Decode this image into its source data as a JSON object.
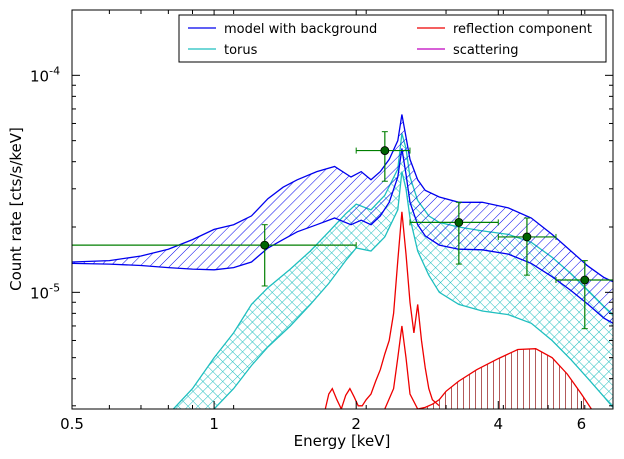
{
  "chart_data": {
    "type": "line",
    "xlabel": "Energy [keV]",
    "ylabel": "Count rate [cts/s/keV]",
    "xscale": "log",
    "yscale": "log",
    "xlim": [
      0.5,
      7.0
    ],
    "ylim": [
      2.9e-06,
      0.0002
    ],
    "x_ticks": [
      {
        "value": 0.5,
        "label": "0.5"
      },
      {
        "value": 1,
        "label": "1"
      },
      {
        "value": 2,
        "label": "2"
      },
      {
        "value": 4,
        "label": "4"
      },
      {
        "value": 6,
        "label": "6"
      }
    ],
    "y_ticks": [
      {
        "value": 1e-05,
        "base": "10",
        "exp": "-5"
      },
      {
        "value": 0.0001,
        "base": "10",
        "exp": "-4"
      }
    ],
    "legend": {
      "placement": "top-right",
      "entries": [
        {
          "label": "model with background",
          "color": "#0000ee"
        },
        {
          "label": "reflection component",
          "color": "#ee0000"
        },
        {
          "label": "torus",
          "color": "#1fbfbf"
        },
        {
          "label": "scattering",
          "color": "#bf00bf"
        }
      ]
    },
    "bands": [
      {
        "name": "model with background",
        "color": "#0000ee",
        "hatch": "diagonal",
        "x": [
          0.5,
          0.6,
          0.7,
          0.8,
          0.9,
          1.0,
          1.1,
          1.2,
          1.3,
          1.4,
          1.5,
          1.65,
          1.8,
          1.95,
          2.05,
          2.15,
          2.25,
          2.35,
          2.45,
          2.5,
          2.55,
          2.6,
          2.7,
          2.8,
          3.0,
          3.3,
          3.7,
          4.2,
          4.7,
          5.2,
          5.7,
          6.2,
          6.7,
          7.0
        ],
        "upper": [
          1.38e-05,
          1.4e-05,
          1.47e-05,
          1.58e-05,
          1.75e-05,
          1.95e-05,
          2.05e-05,
          2.25e-05,
          2.7e-05,
          3.05e-05,
          3.3e-05,
          3.6e-05,
          3.8e-05,
          3.4e-05,
          3.6e-05,
          3.3e-05,
          3.6e-05,
          4.1e-05,
          5e-05,
          6.6e-05,
          5.2e-05,
          4.1e-05,
          3.3e-05,
          2.95e-05,
          2.75e-05,
          2.6e-05,
          2.6e-05,
          2.45e-05,
          2.2e-05,
          1.85e-05,
          1.55e-05,
          1.32e-05,
          1.17e-05,
          1.12e-05
        ],
        "lower": [
          1.36e-05,
          1.35e-05,
          1.33e-05,
          1.3e-05,
          1.28e-05,
          1.27e-05,
          1.3e-05,
          1.38e-05,
          1.6e-05,
          1.75e-05,
          1.9e-05,
          2.05e-05,
          2.2e-05,
          2.05e-05,
          2.15e-05,
          2.05e-05,
          2.25e-05,
          2.6e-05,
          3.4e-05,
          4.6e-05,
          3.5e-05,
          2.6e-05,
          2.05e-05,
          1.82e-05,
          1.65e-05,
          1.58e-05,
          1.57e-05,
          1.5e-05,
          1.36e-05,
          1.18e-05,
          1.02e-05,
          8.8e-06,
          7.6e-06,
          7.2e-06
        ]
      },
      {
        "name": "torus",
        "color": "#1fbfbf",
        "hatch": "cross",
        "x": [
          0.82,
          0.9,
          1.0,
          1.1,
          1.2,
          1.3,
          1.45,
          1.6,
          1.75,
          1.9,
          2.0,
          2.15,
          2.3,
          2.45,
          2.5,
          2.55,
          2.6,
          2.7,
          2.85,
          3.0,
          3.3,
          3.7,
          4.2,
          4.7,
          5.2,
          5.7,
          6.2,
          6.7,
          7.0
        ],
        "upper": [
          2.9e-06,
          3.6e-06,
          5e-06,
          6.5e-06,
          8.8e-06,
          1.05e-05,
          1.28e-05,
          1.55e-05,
          1.9e-05,
          2.3e-05,
          2.55e-05,
          2.4e-05,
          2.8e-05,
          3.7e-05,
          5.4e-05,
          4.6e-05,
          3.4e-05,
          2.65e-05,
          2.25e-05,
          2.1e-05,
          2e-05,
          1.92e-05,
          1.85e-05,
          1.7e-05,
          1.45e-05,
          1.22e-05,
          1.02e-05,
          8.6e-06,
          7.9e-06
        ],
        "lower": [
          null,
          null,
          2.9e-06,
          3.6e-06,
          4.6e-06,
          5.6e-06,
          7e-06,
          8.8e-06,
          1.1e-05,
          1.4e-05,
          1.6e-05,
          1.55e-05,
          1.8e-05,
          2.4e-05,
          3.6e-05,
          3e-05,
          2.2e-05,
          1.55e-05,
          1.2e-05,
          1e-05,
          8.8e-06,
          8.2e-06,
          7.9e-06,
          7.2e-06,
          6e-06,
          4.9e-06,
          4e-06,
          3.3e-06,
          2.95e-06
        ]
      }
    ],
    "series": [
      {
        "name": "reflection component",
        "color": "#ee0000",
        "lines": [
          {
            "x": [
              1.72,
              1.75,
              1.78,
              1.82,
              1.86,
              1.9,
              1.94,
              1.98,
              2.02,
              2.06,
              2.1,
              2.15,
              2.2,
              2.25,
              2.3,
              2.35,
              2.4,
              2.45,
              2.5,
              2.55,
              2.6,
              2.65,
              2.7,
              2.75,
              2.8,
              2.85,
              2.9,
              3.0
            ],
            "y": [
              2.9e-06,
              3.4e-06,
              3.6e-06,
              3.2e-06,
              2.9e-06,
              3.35e-06,
              3.6e-06,
              3.3e-06,
              3e-06,
              3e-06,
              3.2e-06,
              3.4e-06,
              3.9e-06,
              4.4e-06,
              5.2e-06,
              6e-06,
              8e-06,
              1.4e-05,
              2.35e-05,
              1.5e-05,
              9e-06,
              6.5e-06,
              8.8e-06,
              6e-06,
              4.5e-06,
              3.6e-06,
              3.2e-06,
              3e-06
            ]
          },
          {
            "x": [
              2.3,
              2.4,
              2.45,
              2.5,
              2.55,
              2.6,
              2.7,
              2.8,
              2.9,
              3.0,
              3.1,
              3.3,
              3.6,
              4.0,
              4.4,
              4.8,
              5.2,
              5.6,
              6.0,
              6.3
            ],
            "y": [
              2.9e-06,
              3.6e-06,
              5e-06,
              7e-06,
              5e-06,
              3.4e-06,
              2.9e-06,
              2.95e-06,
              3.05e-06,
              3.2e-06,
              3.5e-06,
              3.9e-06,
              4.4e-06,
              4.95e-06,
              5.45e-06,
              5.5e-06,
              5e-06,
              4.2e-06,
              3.4e-06,
              2.9e-06
            ]
          }
        ]
      },
      {
        "name": "scattering",
        "color": "#bf00bf",
        "lines": []
      }
    ],
    "data_points": {
      "color": "#007f00",
      "points": [
        {
          "x": 1.28,
          "xlo": 0.5,
          "xhi": 2.0,
          "y": 1.65e-05,
          "ylo": 1.07e-05,
          "yhi": 2.05e-05
        },
        {
          "x": 2.3,
          "xlo": 2.0,
          "xhi": 2.6,
          "y": 4.5e-05,
          "ylo": 3.25e-05,
          "yhi": 5.5e-05
        },
        {
          "x": 3.3,
          "xlo": 2.6,
          "xhi": 4.0,
          "y": 2.1e-05,
          "ylo": 1.35e-05,
          "yhi": 2.6e-05
        },
        {
          "x": 4.6,
          "xlo": 4.0,
          "xhi": 5.3,
          "y": 1.8e-05,
          "ylo": 1.2e-05,
          "yhi": 2.2e-05
        },
        {
          "x": 6.1,
          "xlo": 5.3,
          "xhi": 7.0,
          "y": 1.14e-05,
          "ylo": 6.8e-06,
          "yhi": 1.4e-05
        }
      ]
    },
    "grid": false
  }
}
